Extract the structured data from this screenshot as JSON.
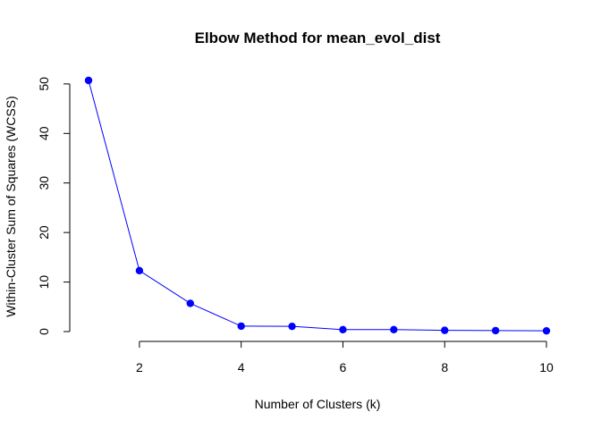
{
  "chart_data": {
    "type": "line",
    "title": "Elbow Method for mean_evol_dist",
    "xlabel": "Number of Clusters (k)",
    "ylabel": "Within-Cluster Sum of Squares (WCSS)",
    "x": [
      1,
      2,
      3,
      4,
      5,
      6,
      7,
      8,
      9,
      10
    ],
    "series": [
      {
        "values": [
          50.7,
          12.3,
          5.7,
          1.1,
          1.05,
          0.4,
          0.4,
          0.25,
          0.2,
          0.15
        ]
      }
    ],
    "xlim": [
      1,
      10
    ],
    "ylim": [
      0,
      50.7
    ],
    "xticks": [
      2,
      4,
      6,
      8,
      10
    ],
    "yticks": [
      0,
      10,
      20,
      30,
      40,
      50
    ],
    "xtick_labels": [
      "2",
      "4",
      "6",
      "8",
      "10"
    ],
    "ytick_labels": [
      "0",
      "10",
      "20",
      "30",
      "40",
      "50"
    ],
    "grid": false,
    "line_color": "#0000ff",
    "marker_color": "#0000ff",
    "marker": "filled-circle"
  }
}
